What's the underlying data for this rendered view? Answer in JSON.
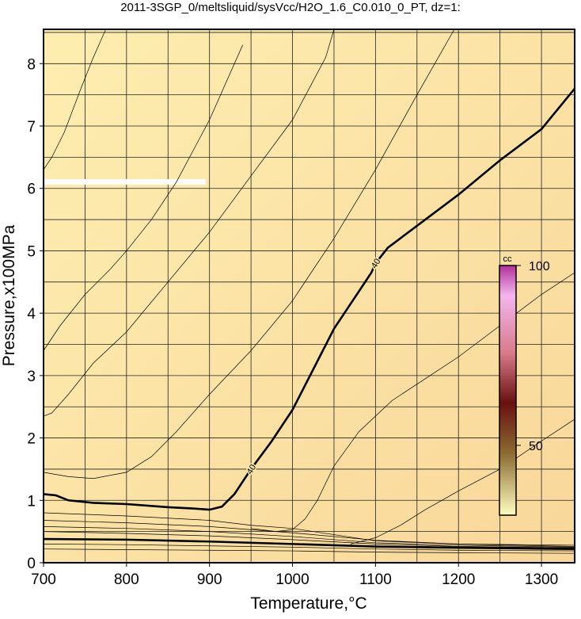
{
  "chart_data": {
    "type": "contour",
    "title": "2011-3SGP_0/meltsliquid/sysVcc/H2O_1.6_C0.010_0_PT, dz=1:",
    "x_label": "Temperature,°C",
    "y_label": "Pressure,x100MPa",
    "xlim": [
      700,
      1340
    ],
    "ylim": [
      0,
      8.55
    ],
    "xticks": [
      700,
      800,
      900,
      1000,
      1100,
      1200,
      1300
    ],
    "yticks": [
      0,
      1,
      2,
      3,
      4,
      5,
      6,
      7,
      8
    ],
    "xgrid": [
      700,
      750,
      800,
      850,
      900,
      950,
      1000,
      1050,
      1100,
      1150,
      1200,
      1250,
      1300
    ],
    "ygrid": [
      0,
      0.5,
      1,
      1.5,
      2,
      2.5,
      3,
      3.5,
      4,
      4.5,
      5,
      5.5,
      6,
      6.5,
      7,
      7.5,
      8,
      8.5
    ],
    "colorbar": {
      "label": "cc",
      "lim": [
        30.6,
        100
      ],
      "ticks": [
        50,
        100
      ]
    },
    "series": [
      {
        "level": 40,
        "bold": true,
        "x": [
          700,
          715,
          730,
          760,
          800,
          850,
          880,
          900,
          915,
          930,
          950,
          975,
          1000,
          1025,
          1050,
          1080,
          1095,
          1100,
          1115,
          1130,
          1160,
          1200,
          1250,
          1300,
          1340
        ],
        "y": [
          1.1,
          1.08,
          1.0,
          0.96,
          0.94,
          0.89,
          0.87,
          0.85,
          0.9,
          1.1,
          1.5,
          1.95,
          2.45,
          3.1,
          3.75,
          4.35,
          4.65,
          4.8,
          5.05,
          5.2,
          5.5,
          5.9,
          6.45,
          6.95,
          7.6
        ]
      },
      {
        "x": [
          700,
          710,
          725,
          745,
          760,
          775
        ],
        "y": [
          6.3,
          6.5,
          6.9,
          7.6,
          8.1,
          8.55
        ]
      },
      {
        "x": [
          700,
          720,
          750,
          780,
          800,
          830,
          860,
          880,
          900,
          920,
          940
        ],
        "y": [
          3.4,
          3.8,
          4.3,
          4.7,
          5.0,
          5.5,
          6.1,
          6.6,
          7.1,
          7.7,
          8.3
        ]
      },
      {
        "x": [
          700,
          710,
          730,
          760,
          800,
          850,
          900,
          950,
          1000,
          1020,
          1040,
          1050
        ],
        "y": [
          2.35,
          2.4,
          2.7,
          3.2,
          3.7,
          4.5,
          5.3,
          6.2,
          7.1,
          7.6,
          8.1,
          8.55
        ]
      },
      {
        "x": [
          700,
          730,
          760,
          800,
          830,
          860,
          900,
          950,
          1000,
          1050,
          1100,
          1150,
          1180,
          1195
        ],
        "y": [
          1.45,
          1.38,
          1.35,
          1.45,
          1.7,
          2.1,
          2.7,
          3.4,
          4.2,
          5.2,
          6.3,
          7.5,
          8.2,
          8.55
        ]
      },
      {
        "x": [
          950,
          980,
          1000,
          1015,
          1030,
          1050,
          1080,
          1120,
          1160,
          1200,
          1250,
          1300,
          1340
        ],
        "y": [
          0.55,
          0.5,
          0.53,
          0.7,
          1.0,
          1.55,
          2.1,
          2.6,
          2.95,
          3.3,
          3.8,
          4.3,
          4.65
        ]
      },
      {
        "x": [
          1070,
          1100,
          1130,
          1160,
          1200,
          1250,
          1300,
          1340
        ],
        "y": [
          0.3,
          0.4,
          0.6,
          0.85,
          1.15,
          1.5,
          1.95,
          2.3
        ]
      },
      {
        "x": [
          700,
          800,
          900,
          950,
          1000,
          1050,
          1100,
          1200,
          1340
        ],
        "y": [
          0.8,
          0.75,
          0.68,
          0.6,
          0.55,
          0.45,
          0.35,
          0.3,
          0.28
        ]
      },
      {
        "x": [
          700,
          800,
          900,
          1000,
          1100,
          1200,
          1340
        ],
        "y": [
          0.68,
          0.64,
          0.58,
          0.48,
          0.36,
          0.3,
          0.26
        ]
      },
      {
        "x": [
          700,
          800,
          900,
          1000,
          1100,
          1200,
          1340
        ],
        "y": [
          0.58,
          0.55,
          0.5,
          0.42,
          0.32,
          0.28,
          0.25
        ]
      },
      {
        "x": [
          700,
          800,
          900,
          1000,
          1100,
          1200,
          1340
        ],
        "y": [
          0.5,
          0.47,
          0.43,
          0.37,
          0.3,
          0.26,
          0.24
        ]
      },
      {
        "bold": true,
        "x": [
          700,
          800,
          900,
          1000,
          1100,
          1200,
          1340
        ],
        "y": [
          0.38,
          0.37,
          0.34,
          0.3,
          0.26,
          0.24,
          0.22
        ]
      },
      {
        "x": [
          700,
          800,
          900,
          1000,
          1100,
          1200,
          1340
        ],
        "y": [
          0.3,
          0.29,
          0.27,
          0.25,
          0.22,
          0.2,
          0.19
        ]
      },
      {
        "x": [
          700,
          800,
          900,
          1000,
          1100,
          1200,
          1340
        ],
        "y": [
          0.22,
          0.21,
          0.2,
          0.19,
          0.17,
          0.16,
          0.15
        ]
      }
    ]
  }
}
